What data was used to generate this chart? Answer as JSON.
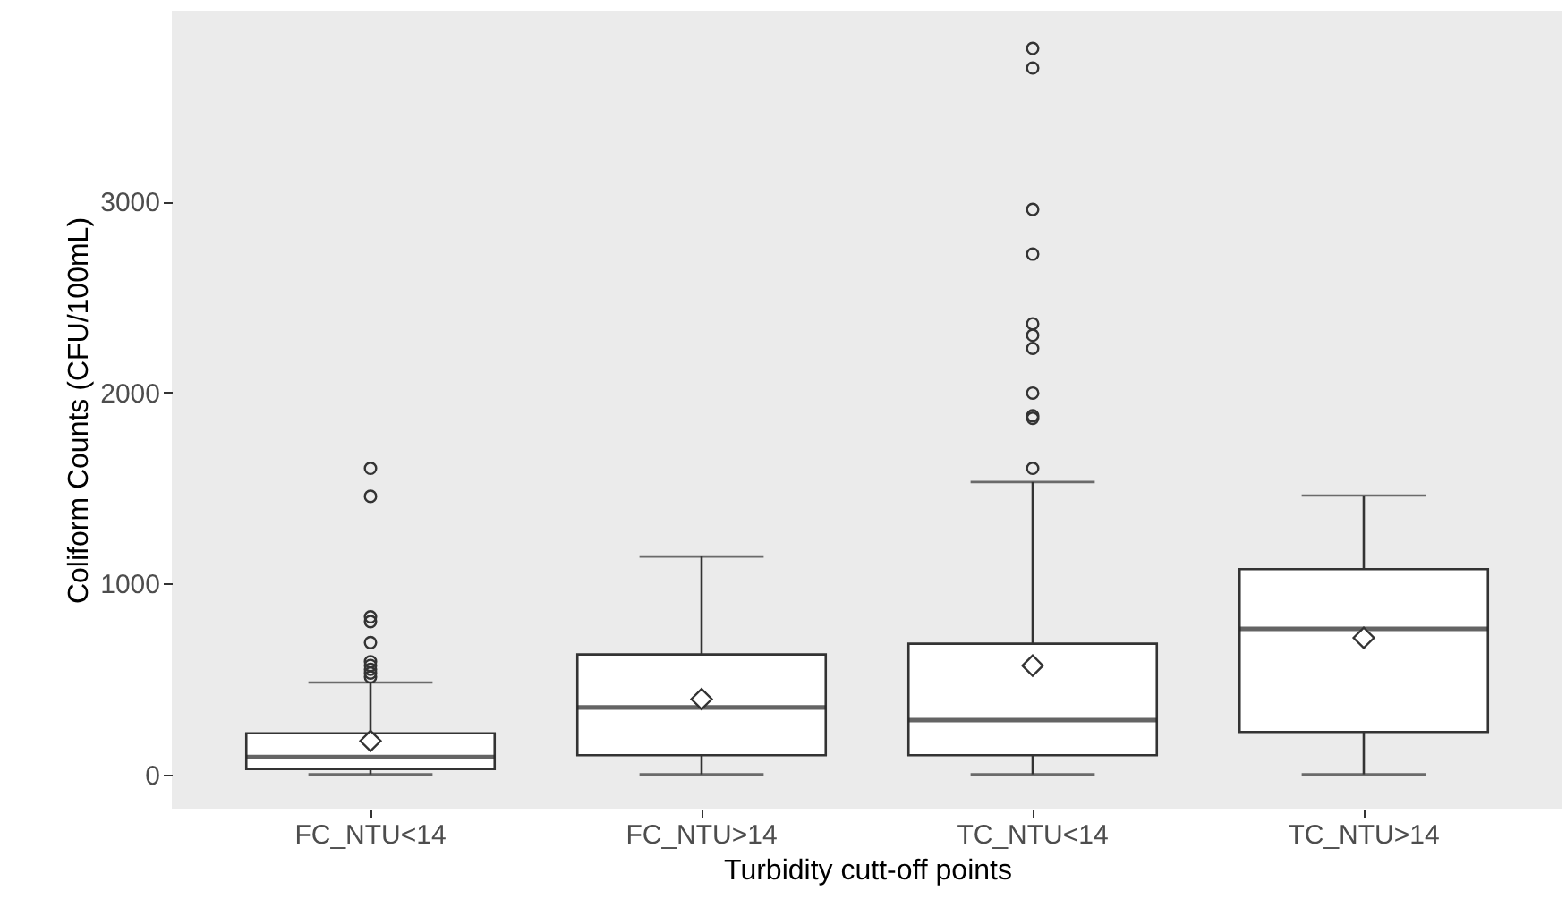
{
  "chart_data": {
    "type": "box",
    "xlabel": "Turbidity cutt-off points",
    "ylabel": "Coliform Counts (CFU/100mL)",
    "categories": [
      "FC_NTU<14",
      "FC_NTU>14",
      "TC_NTU<14",
      "TC_NTU>14"
    ],
    "ylim": [
      -180,
      4000
    ],
    "yticks": [
      0,
      1000,
      2000,
      3000
    ],
    "grid": false,
    "boxes": [
      {
        "low": 0,
        "q1": 28,
        "median": 90,
        "q3": 215,
        "high": 481,
        "mean": 175,
        "outliers": [
          510,
          530,
          550,
          570,
          590,
          690,
          800,
          825,
          1456,
          1603
        ]
      },
      {
        "low": 0,
        "q1": 100,
        "median": 350,
        "q3": 628,
        "high": 1141,
        "mean": 394
      },
      {
        "low": 0,
        "q1": 100,
        "median": 284,
        "q3": 684,
        "high": 1531,
        "mean": 569,
        "outliers": [
          1603,
          1865,
          1878,
          1997,
          2231,
          2300,
          2360,
          2725,
          2959,
          3700,
          3803
        ]
      },
      {
        "low": 0,
        "q1": 222,
        "median": 762,
        "q3": 1075,
        "high": 1460,
        "mean": 715
      }
    ]
  }
}
